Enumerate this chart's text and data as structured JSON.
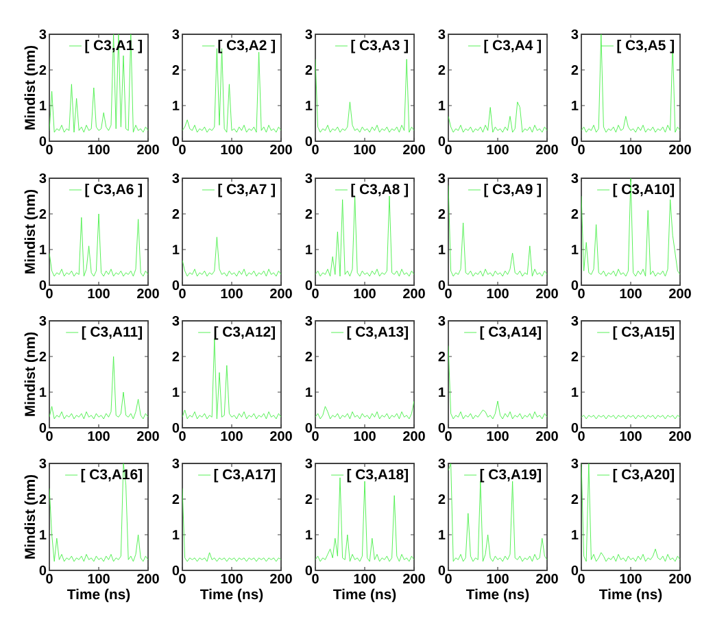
{
  "chart_data": [
    {
      "type": "line",
      "ylabel": "Mindist (nm)",
      "legend": "top right",
      "marker": "none",
      "line_style": "solid",
      "xlim": [
        0,
        200
      ],
      "ylim": [
        0,
        3
      ],
      "xticks": [
        0,
        100,
        200
      ],
      "yticks": [
        0,
        1,
        2,
        3
      ],
      "x": [
        0,
        5,
        10,
        15,
        20,
        25,
        30,
        35,
        40,
        45,
        50,
        55,
        60,
        65,
        70,
        75,
        80,
        85,
        90,
        95,
        100,
        105,
        110,
        115,
        120,
        125,
        130,
        135,
        140,
        145,
        150,
        155,
        160,
        165,
        170,
        175,
        180,
        185,
        190,
        195,
        200
      ],
      "series": [
        {
          "name": "[ C3,A1 ]",
          "color": "#44ee44",
          "values": [
            0.3,
            1.4,
            0.25,
            0.35,
            0.3,
            0.45,
            0.25,
            0.35,
            0.3,
            1.6,
            0.25,
            1.2,
            0.3,
            0.4,
            0.25,
            0.45,
            0.3,
            0.35,
            1.5,
            0.4,
            0.3,
            0.35,
            0.8,
            0.4,
            0.3,
            0.45,
            3,
            0.35,
            3,
            0.4,
            2.4,
            0.35,
            0.3,
            3,
            0.25,
            0.45,
            0.3,
            0.35,
            0.25,
            0.4,
            0.3
          ]
        }
      ]
    },
    {
      "type": "line",
      "legend": "top right",
      "marker": "none",
      "line_style": "solid",
      "xlim": [
        0,
        200
      ],
      "ylim": [
        0,
        3
      ],
      "xticks": [
        0,
        100,
        200
      ],
      "yticks": [
        0,
        1,
        2,
        3
      ],
      "x": [
        0,
        5,
        10,
        15,
        20,
        25,
        30,
        35,
        40,
        45,
        50,
        55,
        60,
        65,
        70,
        75,
        80,
        85,
        90,
        95,
        100,
        105,
        110,
        115,
        120,
        125,
        130,
        135,
        140,
        145,
        150,
        155,
        160,
        165,
        170,
        175,
        180,
        185,
        190,
        195,
        200
      ],
      "series": [
        {
          "name": "[ C3,A2 ]",
          "color": "#44ee44",
          "values": [
            0.3,
            0.4,
            0.6,
            0.35,
            0.3,
            0.45,
            0.25,
            0.35,
            0.3,
            0.4,
            0.25,
            0.35,
            0.3,
            0.4,
            2.6,
            0.45,
            2.6,
            0.35,
            0.25,
            1.6,
            0.3,
            0.35,
            0.25,
            0.4,
            0.3,
            0.45,
            0.25,
            0.35,
            0.3,
            0.4,
            0.25,
            2.5,
            0.3,
            0.4,
            0.25,
            0.45,
            0.3,
            0.35,
            0.25,
            0.4,
            0.3
          ]
        }
      ]
    },
    {
      "type": "line",
      "legend": "top right",
      "marker": "none",
      "line_style": "solid",
      "xlim": [
        0,
        200
      ],
      "ylim": [
        0,
        3
      ],
      "xticks": [
        0,
        100,
        200
      ],
      "yticks": [
        0,
        1,
        2,
        3
      ],
      "x": [
        0,
        5,
        10,
        15,
        20,
        25,
        30,
        35,
        40,
        45,
        50,
        55,
        60,
        65,
        70,
        75,
        80,
        85,
        90,
        95,
        100,
        105,
        110,
        115,
        120,
        125,
        130,
        135,
        140,
        145,
        150,
        155,
        160,
        165,
        170,
        175,
        180,
        185,
        190,
        195,
        200
      ],
      "series": [
        {
          "name": "[ C3,A3 ]",
          "color": "#44ee44",
          "values": [
            2.3,
            0.4,
            0.25,
            0.35,
            0.3,
            0.45,
            0.25,
            0.35,
            0.3,
            0.4,
            0.25,
            0.35,
            0.3,
            0.4,
            1.1,
            0.45,
            0.3,
            0.35,
            0.25,
            0.4,
            0.3,
            0.35,
            0.25,
            0.4,
            0.3,
            0.45,
            0.25,
            0.35,
            0.3,
            0.4,
            0.25,
            0.35,
            0.3,
            0.4,
            0.25,
            0.45,
            0.3,
            2.3,
            0.25,
            0.4,
            0.3
          ]
        }
      ]
    },
    {
      "type": "line",
      "legend": "top right",
      "marker": "none",
      "line_style": "solid",
      "xlim": [
        0,
        200
      ],
      "ylim": [
        0,
        3
      ],
      "xticks": [
        0,
        100,
        200
      ],
      "yticks": [
        0,
        1,
        2,
        3
      ],
      "x": [
        0,
        5,
        10,
        15,
        20,
        25,
        30,
        35,
        40,
        45,
        50,
        55,
        60,
        65,
        70,
        75,
        80,
        85,
        90,
        95,
        100,
        105,
        110,
        115,
        120,
        125,
        130,
        135,
        140,
        145,
        150,
        155,
        160,
        165,
        170,
        175,
        180,
        185,
        190,
        195,
        200
      ],
      "series": [
        {
          "name": "[ C3,A4 ]",
          "color": "#44ee44",
          "values": [
            0.7,
            0.4,
            0.25,
            0.35,
            0.3,
            0.45,
            0.25,
            0.35,
            0.3,
            0.4,
            0.25,
            0.35,
            0.3,
            0.4,
            0.25,
            0.45,
            0.3,
            0.95,
            0.25,
            0.4,
            0.3,
            0.35,
            0.25,
            0.4,
            0.3,
            0.7,
            0.25,
            0.35,
            1.1,
            0.95,
            0.25,
            0.35,
            0.3,
            0.4,
            0.25,
            0.45,
            0.3,
            0.35,
            0.25,
            0.4,
            0.3
          ]
        }
      ]
    },
    {
      "type": "line",
      "legend": "top right",
      "marker": "none",
      "line_style": "solid",
      "xlim": [
        0,
        200
      ],
      "ylim": [
        0,
        3
      ],
      "xticks": [
        0,
        100,
        200
      ],
      "yticks": [
        0,
        1,
        2,
        3
      ],
      "x": [
        0,
        5,
        10,
        15,
        20,
        25,
        30,
        35,
        40,
        45,
        50,
        55,
        60,
        65,
        70,
        75,
        80,
        85,
        90,
        95,
        100,
        105,
        110,
        115,
        120,
        125,
        130,
        135,
        140,
        145,
        150,
        155,
        160,
        165,
        170,
        175,
        180,
        185,
        190,
        195,
        200
      ],
      "series": [
        {
          "name": "[ C3,A5 ]",
          "color": "#44ee44",
          "values": [
            0.3,
            0.4,
            0.25,
            0.35,
            0.3,
            0.45,
            0.25,
            0.35,
            3,
            0.4,
            0.25,
            0.35,
            0.3,
            0.4,
            0.25,
            0.45,
            0.3,
            0.35,
            0.7,
            0.4,
            0.3,
            0.35,
            0.25,
            0.4,
            0.3,
            0.45,
            0.25,
            0.35,
            0.3,
            0.4,
            0.25,
            0.35,
            0.3,
            0.4,
            0.25,
            0.45,
            0.3,
            2.7,
            0.25,
            0.4,
            0.3
          ]
        }
      ]
    },
    {
      "type": "line",
      "ylabel": "Mindist (nm)",
      "legend": "top right",
      "marker": "none",
      "line_style": "solid",
      "xlim": [
        0,
        200
      ],
      "ylim": [
        0,
        3
      ],
      "xticks": [
        0,
        100,
        200
      ],
      "yticks": [
        0,
        1,
        2,
        3
      ],
      "x": [
        0,
        5,
        10,
        15,
        20,
        25,
        30,
        35,
        40,
        45,
        50,
        55,
        60,
        65,
        70,
        75,
        80,
        85,
        90,
        95,
        100,
        105,
        110,
        115,
        120,
        125,
        130,
        135,
        140,
        145,
        150,
        155,
        160,
        165,
        170,
        175,
        180,
        185,
        190,
        195,
        200
      ],
      "series": [
        {
          "name": "[ C3,A6 ]",
          "color": "#44ee44",
          "values": [
            0.9,
            0.4,
            0.25,
            0.35,
            0.3,
            0.45,
            0.25,
            0.35,
            0.3,
            0.4,
            0.25,
            0.35,
            0.3,
            1.9,
            0.25,
            0.45,
            1.1,
            0.35,
            0.25,
            0.4,
            2.0,
            0.35,
            0.25,
            0.4,
            0.3,
            0.45,
            0.25,
            0.35,
            0.3,
            0.4,
            0.25,
            0.35,
            0.3,
            0.4,
            0.25,
            0.45,
            1.85,
            0.35,
            0.25,
            0.4,
            0.3
          ]
        }
      ]
    },
    {
      "type": "line",
      "legend": "top right",
      "marker": "none",
      "line_style": "solid",
      "xlim": [
        0,
        200
      ],
      "ylim": [
        0,
        3
      ],
      "xticks": [
        0,
        100,
        200
      ],
      "yticks": [
        0,
        1,
        2,
        3
      ],
      "x": [
        0,
        5,
        10,
        15,
        20,
        25,
        30,
        35,
        40,
        45,
        50,
        55,
        60,
        65,
        70,
        75,
        80,
        85,
        90,
        95,
        100,
        105,
        110,
        115,
        120,
        125,
        130,
        135,
        140,
        145,
        150,
        155,
        160,
        165,
        170,
        175,
        180,
        185,
        190,
        195,
        200
      ],
      "series": [
        {
          "name": "[ C3,A7 ]",
          "color": "#44ee44",
          "values": [
            0.7,
            0.4,
            0.25,
            0.35,
            0.3,
            0.45,
            0.25,
            0.35,
            0.3,
            0.4,
            0.25,
            0.35,
            0.3,
            0.4,
            1.35,
            0.45,
            0.3,
            0.35,
            0.25,
            0.4,
            0.3,
            0.35,
            0.25,
            0.4,
            0.3,
            0.45,
            0.25,
            0.35,
            0.3,
            0.4,
            0.25,
            0.35,
            0.3,
            0.4,
            0.25,
            0.45,
            0.3,
            0.35,
            0.25,
            0.4,
            0.3
          ]
        }
      ]
    },
    {
      "type": "line",
      "legend": "top right",
      "marker": "none",
      "line_style": "solid",
      "xlim": [
        0,
        200
      ],
      "ylim": [
        0,
        3
      ],
      "xticks": [
        0,
        100,
        200
      ],
      "yticks": [
        0,
        1,
        2,
        3
      ],
      "x": [
        0,
        5,
        10,
        15,
        20,
        25,
        30,
        35,
        40,
        45,
        50,
        55,
        60,
        65,
        70,
        75,
        80,
        85,
        90,
        95,
        100,
        105,
        110,
        115,
        120,
        125,
        130,
        135,
        140,
        145,
        150,
        155,
        160,
        165,
        170,
        175,
        180,
        185,
        190,
        195,
        200
      ],
      "series": [
        {
          "name": "[ C3,A8 ]",
          "color": "#44ee44",
          "values": [
            0.3,
            0.4,
            0.25,
            0.35,
            0.3,
            0.45,
            0.25,
            0.8,
            0.3,
            1.5,
            0.25,
            2.4,
            0.3,
            0.4,
            0.25,
            0.45,
            2.5,
            0.35,
            0.25,
            0.4,
            0.3,
            0.35,
            0.25,
            0.4,
            0.3,
            0.45,
            0.25,
            0.35,
            0.3,
            0.4,
            2.5,
            0.35,
            0.3,
            0.4,
            0.25,
            0.45,
            0.3,
            0.35,
            0.25,
            0.4,
            0.3
          ]
        }
      ]
    },
    {
      "type": "line",
      "legend": "top right",
      "marker": "none",
      "line_style": "solid",
      "xlim": [
        0,
        200
      ],
      "ylim": [
        0,
        3
      ],
      "xticks": [
        0,
        100,
        200
      ],
      "yticks": [
        0,
        1,
        2,
        3
      ],
      "x": [
        0,
        5,
        10,
        15,
        20,
        25,
        30,
        35,
        40,
        45,
        50,
        55,
        60,
        65,
        70,
        75,
        80,
        85,
        90,
        95,
        100,
        105,
        110,
        115,
        120,
        125,
        130,
        135,
        140,
        145,
        150,
        155,
        160,
        165,
        170,
        175,
        180,
        185,
        190,
        195,
        200
      ],
      "series": [
        {
          "name": "[ C3,A9 ]",
          "color": "#44ee44",
          "values": [
            2.8,
            0.4,
            0.25,
            0.35,
            0.3,
            0.45,
            1.75,
            0.35,
            0.3,
            0.4,
            0.25,
            0.35,
            0.3,
            0.4,
            0.25,
            0.45,
            0.3,
            0.35,
            0.25,
            0.4,
            0.3,
            0.35,
            0.25,
            0.4,
            0.3,
            0.45,
            0.9,
            0.35,
            0.3,
            0.4,
            0.25,
            0.35,
            0.3,
            1.1,
            0.25,
            0.45,
            0.3,
            0.35,
            0.25,
            0.4,
            0.3
          ]
        }
      ]
    },
    {
      "type": "line",
      "legend": "top right",
      "marker": "none",
      "line_style": "solid",
      "xlim": [
        0,
        200
      ],
      "ylim": [
        0,
        3
      ],
      "xticks": [
        0,
        100,
        200
      ],
      "yticks": [
        0,
        1,
        2,
        3
      ],
      "x": [
        0,
        5,
        10,
        15,
        20,
        25,
        30,
        35,
        40,
        45,
        50,
        55,
        60,
        65,
        70,
        75,
        80,
        85,
        90,
        95,
        100,
        105,
        110,
        115,
        120,
        125,
        130,
        135,
        140,
        145,
        150,
        155,
        160,
        165,
        170,
        175,
        180,
        185,
        190,
        195,
        200
      ],
      "series": [
        {
          "name": "[ C3,A10]",
          "color": "#44ee44",
          "values": [
            2.5,
            0.4,
            1.2,
            0.35,
            0.3,
            0.45,
            1.7,
            0.35,
            0.3,
            0.4,
            0.25,
            0.35,
            0.3,
            0.4,
            0.25,
            0.45,
            0.3,
            0.35,
            0.25,
            0.4,
            3,
            0.35,
            0.25,
            0.4,
            0.3,
            0.45,
            0.25,
            2.1,
            0.3,
            0.4,
            0.25,
            0.35,
            0.3,
            0.4,
            0.25,
            0.45,
            2.4,
            1.4,
            0.9,
            0.4,
            0.3
          ]
        }
      ]
    },
    {
      "type": "line",
      "ylabel": "Mindist (nm)",
      "legend": "top right",
      "marker": "none",
      "line_style": "solid",
      "xlim": [
        0,
        200
      ],
      "ylim": [
        0,
        3
      ],
      "xticks": [
        0,
        100,
        200
      ],
      "yticks": [
        0,
        1,
        2,
        3
      ],
      "x": [
        0,
        5,
        10,
        15,
        20,
        25,
        30,
        35,
        40,
        45,
        50,
        55,
        60,
        65,
        70,
        75,
        80,
        85,
        90,
        95,
        100,
        105,
        110,
        115,
        120,
        125,
        130,
        135,
        140,
        145,
        150,
        155,
        160,
        165,
        170,
        175,
        180,
        185,
        190,
        195,
        200
      ],
      "series": [
        {
          "name": "[ C3,A11]",
          "color": "#44ee44",
          "values": [
            0.3,
            0.6,
            0.25,
            0.35,
            0.3,
            0.45,
            0.25,
            0.35,
            0.3,
            0.4,
            0.25,
            0.35,
            0.3,
            0.4,
            0.25,
            0.45,
            0.3,
            0.35,
            0.25,
            0.4,
            0.3,
            0.35,
            0.25,
            0.4,
            0.3,
            0.45,
            2.0,
            0.35,
            0.3,
            0.4,
            1.0,
            0.35,
            0.3,
            0.4,
            0.25,
            0.45,
            0.8,
            0.35,
            0.25,
            0.4,
            0.3
          ]
        }
      ]
    },
    {
      "type": "line",
      "legend": "top right",
      "marker": "none",
      "line_style": "solid",
      "xlim": [
        0,
        200
      ],
      "ylim": [
        0,
        3
      ],
      "xticks": [
        0,
        100,
        200
      ],
      "yticks": [
        0,
        1,
        2,
        3
      ],
      "x": [
        0,
        5,
        10,
        15,
        20,
        25,
        30,
        35,
        40,
        45,
        50,
        55,
        60,
        65,
        70,
        75,
        80,
        85,
        90,
        95,
        100,
        105,
        110,
        115,
        120,
        125,
        130,
        135,
        140,
        145,
        150,
        155,
        160,
        165,
        170,
        175,
        180,
        185,
        190,
        195,
        200
      ],
      "series": [
        {
          "name": "[ C3,A12]",
          "color": "#44ee44",
          "values": [
            0.3,
            0.5,
            0.25,
            0.35,
            0.3,
            0.45,
            0.25,
            0.35,
            0.3,
            0.4,
            0.25,
            0.35,
            0.3,
            2.5,
            0.25,
            1.55,
            0.3,
            0.35,
            1.75,
            0.4,
            0.3,
            0.35,
            0.25,
            0.4,
            0.3,
            0.45,
            0.25,
            0.35,
            0.3,
            0.4,
            0.25,
            0.35,
            0.3,
            0.4,
            0.25,
            0.45,
            0.3,
            0.35,
            0.25,
            0.4,
            0.3
          ]
        }
      ]
    },
    {
      "type": "line",
      "legend": "top right",
      "marker": "none",
      "line_style": "solid",
      "xlim": [
        0,
        200
      ],
      "ylim": [
        0,
        3
      ],
      "xticks": [
        0,
        100,
        200
      ],
      "yticks": [
        0,
        1,
        2,
        3
      ],
      "x": [
        0,
        5,
        10,
        15,
        20,
        25,
        30,
        35,
        40,
        45,
        50,
        55,
        60,
        65,
        70,
        75,
        80,
        85,
        90,
        95,
        100,
        105,
        110,
        115,
        120,
        125,
        130,
        135,
        140,
        145,
        150,
        155,
        160,
        165,
        170,
        175,
        180,
        185,
        190,
        195,
        200
      ],
      "series": [
        {
          "name": "[ C3,A13]",
          "color": "#44ee44",
          "values": [
            0.3,
            0.4,
            0.25,
            0.35,
            0.6,
            0.45,
            0.25,
            0.35,
            0.3,
            0.4,
            0.25,
            0.35,
            0.3,
            0.4,
            0.25,
            0.45,
            0.3,
            0.35,
            0.25,
            0.4,
            0.3,
            0.35,
            0.25,
            0.4,
            0.3,
            0.45,
            0.25,
            0.35,
            0.3,
            0.4,
            0.25,
            0.35,
            0.3,
            0.4,
            0.25,
            0.45,
            0.3,
            0.35,
            0.25,
            0.4,
            0.75
          ]
        }
      ]
    },
    {
      "type": "line",
      "legend": "top right",
      "marker": "none",
      "line_style": "solid",
      "xlim": [
        0,
        200
      ],
      "ylim": [
        0,
        3
      ],
      "xticks": [
        0,
        100,
        200
      ],
      "yticks": [
        0,
        1,
        2,
        3
      ],
      "x": [
        0,
        5,
        10,
        15,
        20,
        25,
        30,
        35,
        40,
        45,
        50,
        55,
        60,
        65,
        70,
        75,
        80,
        85,
        90,
        95,
        100,
        105,
        110,
        115,
        120,
        125,
        130,
        135,
        140,
        145,
        150,
        155,
        160,
        165,
        170,
        175,
        180,
        185,
        190,
        195,
        200
      ],
      "series": [
        {
          "name": "[ C3,A14]",
          "color": "#44ee44",
          "values": [
            2.3,
            0.4,
            0.25,
            0.35,
            0.3,
            0.45,
            0.25,
            0.35,
            0.3,
            0.4,
            0.25,
            0.35,
            0.3,
            0.4,
            0.5,
            0.45,
            0.3,
            0.35,
            0.25,
            0.4,
            0.75,
            0.35,
            0.25,
            0.4,
            0.3,
            0.45,
            0.25,
            0.35,
            0.3,
            0.4,
            0.25,
            0.35,
            0.3,
            0.4,
            0.25,
            0.45,
            0.3,
            0.35,
            0.25,
            0.4,
            0.3
          ]
        }
      ]
    },
    {
      "type": "line",
      "legend": "top right",
      "marker": "none",
      "line_style": "solid",
      "xlim": [
        0,
        200
      ],
      "ylim": [
        0,
        3
      ],
      "xticks": [
        0,
        100,
        200
      ],
      "yticks": [
        0,
        1,
        2,
        3
      ],
      "x": [
        0,
        5,
        10,
        15,
        20,
        25,
        30,
        35,
        40,
        45,
        50,
        55,
        60,
        65,
        70,
        75,
        80,
        85,
        90,
        95,
        100,
        105,
        110,
        115,
        120,
        125,
        130,
        135,
        140,
        145,
        150,
        155,
        160,
        165,
        170,
        175,
        180,
        185,
        190,
        195,
        200
      ],
      "series": [
        {
          "name": "[ C3,A15]",
          "color": "#44ee44",
          "values": [
            0.3,
            0.35,
            0.25,
            0.35,
            0.3,
            0.35,
            0.25,
            0.35,
            0.3,
            0.35,
            0.25,
            0.35,
            0.3,
            0.35,
            0.25,
            0.35,
            0.3,
            0.35,
            0.25,
            0.35,
            0.3,
            0.35,
            0.25,
            0.35,
            0.3,
            0.35,
            0.25,
            0.35,
            0.3,
            0.35,
            0.25,
            0.35,
            0.3,
            0.35,
            0.25,
            0.35,
            0.3,
            0.35,
            0.25,
            0.35,
            0.3
          ]
        }
      ]
    },
    {
      "type": "line",
      "xlabel": "Time (ns)",
      "ylabel": "Mindist (nm)",
      "legend": "top right",
      "marker": "none",
      "line_style": "solid",
      "xlim": [
        0,
        200
      ],
      "ylim": [
        0,
        3
      ],
      "xticks": [
        0,
        100,
        200
      ],
      "yticks": [
        0,
        1,
        2,
        3
      ],
      "x": [
        0,
        5,
        10,
        15,
        20,
        25,
        30,
        35,
        40,
        45,
        50,
        55,
        60,
        65,
        70,
        75,
        80,
        85,
        90,
        95,
        100,
        105,
        110,
        115,
        120,
        125,
        130,
        135,
        140,
        145,
        150,
        155,
        160,
        165,
        170,
        175,
        180,
        185,
        190,
        195,
        200
      ],
      "series": [
        {
          "name": "[ C3,A16]",
          "color": "#44ee44",
          "values": [
            2.3,
            1.0,
            0.25,
            0.9,
            0.3,
            0.45,
            0.25,
            0.35,
            0.3,
            0.4,
            0.25,
            0.35,
            0.3,
            0.4,
            0.25,
            0.45,
            0.3,
            0.35,
            0.25,
            0.4,
            0.3,
            0.35,
            0.25,
            0.4,
            0.3,
            0.45,
            0.25,
            0.35,
            0.3,
            0.4,
            3,
            2.4,
            0.3,
            0.4,
            0.25,
            0.45,
            1.0,
            0.35,
            0.25,
            0.4,
            0.3
          ]
        }
      ]
    },
    {
      "type": "line",
      "xlabel": "Time (ns)",
      "legend": "top right",
      "marker": "none",
      "line_style": "solid",
      "xlim": [
        0,
        200
      ],
      "ylim": [
        0,
        3
      ],
      "xticks": [
        0,
        100,
        200
      ],
      "yticks": [
        0,
        1,
        2,
        3
      ],
      "x": [
        0,
        5,
        10,
        15,
        20,
        25,
        30,
        35,
        40,
        45,
        50,
        55,
        60,
        65,
        70,
        75,
        80,
        85,
        90,
        95,
        100,
        105,
        110,
        115,
        120,
        125,
        130,
        135,
        140,
        145,
        150,
        155,
        160,
        165,
        170,
        175,
        180,
        185,
        190,
        195,
        200
      ],
      "series": [
        {
          "name": "[ C3,A17]",
          "color": "#44ee44",
          "values": [
            2.3,
            0.35,
            0.25,
            0.35,
            0.3,
            0.35,
            0.25,
            0.35,
            0.3,
            0.35,
            0.25,
            0.5,
            0.3,
            0.35,
            0.25,
            0.35,
            0.3,
            0.35,
            0.25,
            0.35,
            0.3,
            0.35,
            0.25,
            0.35,
            0.3,
            0.35,
            0.25,
            0.35,
            0.3,
            0.35,
            0.25,
            0.35,
            0.3,
            0.35,
            0.25,
            0.35,
            0.3,
            0.35,
            0.25,
            0.35,
            0.3
          ]
        }
      ]
    },
    {
      "type": "line",
      "xlabel": "Time (ns)",
      "legend": "top right",
      "marker": "none",
      "line_style": "solid",
      "xlim": [
        0,
        200
      ],
      "ylim": [
        0,
        3
      ],
      "xticks": [
        0,
        100,
        200
      ],
      "yticks": [
        0,
        1,
        2,
        3
      ],
      "x": [
        0,
        5,
        10,
        15,
        20,
        25,
        30,
        35,
        40,
        45,
        50,
        55,
        60,
        65,
        70,
        75,
        80,
        85,
        90,
        95,
        100,
        105,
        110,
        115,
        120,
        125,
        130,
        135,
        140,
        145,
        150,
        155,
        160,
        165,
        170,
        175,
        180,
        185,
        190,
        195,
        200
      ],
      "series": [
        {
          "name": "[ C3,A18]",
          "color": "#44ee44",
          "values": [
            0.3,
            0.4,
            0.25,
            0.35,
            0.3,
            0.45,
            0.6,
            0.35,
            0.9,
            0.4,
            2.6,
            0.35,
            0.3,
            1.0,
            0.25,
            0.45,
            0.3,
            0.35,
            0.25,
            0.4,
            2.5,
            0.35,
            0.25,
            0.9,
            0.3,
            0.45,
            0.25,
            0.35,
            0.3,
            0.4,
            0.25,
            0.35,
            2.1,
            0.4,
            0.25,
            0.45,
            0.3,
            0.35,
            0.25,
            0.4,
            0.3
          ]
        }
      ]
    },
    {
      "type": "line",
      "xlabel": "Time (ns)",
      "legend": "top right",
      "marker": "none",
      "line_style": "solid",
      "xlim": [
        0,
        200
      ],
      "ylim": [
        0,
        3
      ],
      "xticks": [
        0,
        100,
        200
      ],
      "yticks": [
        0,
        1,
        2,
        3
      ],
      "x": [
        0,
        5,
        10,
        15,
        20,
        25,
        30,
        35,
        40,
        45,
        50,
        55,
        60,
        65,
        70,
        75,
        80,
        85,
        90,
        95,
        100,
        105,
        110,
        115,
        120,
        125,
        130,
        135,
        140,
        145,
        150,
        155,
        160,
        165,
        170,
        175,
        180,
        185,
        190,
        195,
        200
      ],
      "series": [
        {
          "name": "[ C3,A19]",
          "color": "#44ee44",
          "values": [
            2.8,
            3,
            0.25,
            0.35,
            0.3,
            0.45,
            0.25,
            0.35,
            1.6,
            0.4,
            0.25,
            0.35,
            0.3,
            2.5,
            0.25,
            0.45,
            1.0,
            0.35,
            0.25,
            0.4,
            0.3,
            0.35,
            0.25,
            0.4,
            0.3,
            0.45,
            2.5,
            0.35,
            0.3,
            0.4,
            0.25,
            0.35,
            0.3,
            0.4,
            0.25,
            0.45,
            0.3,
            0.35,
            0.9,
            0.4,
            0.3
          ]
        }
      ]
    },
    {
      "type": "line",
      "xlabel": "Time (ns)",
      "legend": "top right",
      "marker": "none",
      "line_style": "solid",
      "xlim": [
        0,
        200
      ],
      "ylim": [
        0,
        3
      ],
      "xticks": [
        0,
        100,
        200
      ],
      "yticks": [
        0,
        1,
        2,
        3
      ],
      "x": [
        0,
        5,
        10,
        15,
        20,
        25,
        30,
        35,
        40,
        45,
        50,
        55,
        60,
        65,
        70,
        75,
        80,
        85,
        90,
        95,
        100,
        105,
        110,
        115,
        120,
        125,
        130,
        135,
        140,
        145,
        150,
        155,
        160,
        165,
        170,
        175,
        180,
        185,
        190,
        195,
        200
      ],
      "series": [
        {
          "name": "[ C3,A20]",
          "color": "#44ee44",
          "values": [
            3,
            0.4,
            0.25,
            3,
            0.3,
            0.45,
            0.25,
            0.35,
            0.5,
            0.4,
            0.25,
            0.35,
            0.3,
            0.4,
            0.25,
            0.45,
            0.3,
            0.35,
            0.25,
            0.4,
            0.3,
            0.35,
            0.25,
            0.4,
            0.3,
            0.45,
            0.25,
            0.35,
            0.3,
            0.4,
            0.6,
            0.35,
            0.3,
            0.4,
            0.25,
            0.45,
            0.3,
            0.35,
            0.25,
            0.4,
            0.3
          ]
        }
      ]
    }
  ]
}
